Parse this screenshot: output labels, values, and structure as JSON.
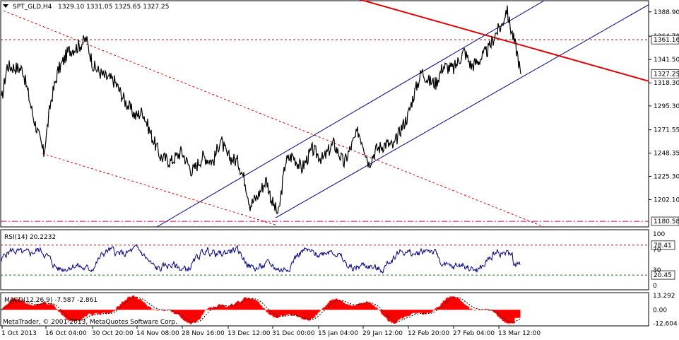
{
  "header": {
    "symbol": "SPT_GLD,H4",
    "ohlc": "1329.10 1331.05 1325.65 1327.25"
  },
  "colors": {
    "background": "#ffffff",
    "price_line": "#000000",
    "channel": "#000080",
    "trend_solid": "#dd0000",
    "trend_dotted": "#dd0000",
    "level_dotted": "#aa0000",
    "support_dashdot": "#cc0077",
    "rsi_line": "#000080",
    "rsi_overbought": "#cc0000",
    "rsi_oversold": "#008000",
    "macd_hist": "#ff0000",
    "macd_signal": "#000000"
  },
  "copyright": "MetaTrader, © 2001-2013, MetaQuotes Software Corp.",
  "chart_data": [
    {
      "type": "line",
      "name": "price",
      "ylim": [
        1175,
        1400
      ],
      "yticks": [
        "1388.90",
        "1364.70",
        "1341.50",
        "1318.30",
        "1295.30",
        "1271.55",
        "1248.35",
        "1225.30",
        "1202.10"
      ],
      "price_tags": [
        {
          "label": "1361.16",
          "value": 1361.16,
          "style": "dark"
        },
        {
          "label": "1327.25",
          "value": 1327.25,
          "style": "dark"
        },
        {
          "label": "1180.58",
          "value": 1180.58,
          "style": "dark"
        }
      ],
      "x_labels": [
        "1 Oct 2013",
        "16 Oct 04:00",
        "30 Oct 20:00",
        "14 Nov 08:00",
        "28 Nov 16:00",
        "13 Dec 12:00",
        "31 Dec 00:00",
        "15 Jan 04:00",
        "29 Jan 12:00",
        "12 Feb 20:00",
        "27 Feb 04:00",
        "13 Mar 12:00"
      ],
      "keypoints": [
        [
          0,
          1300
        ],
        [
          8,
          1335
        ],
        [
          30,
          1332
        ],
        [
          45,
          1285
        ],
        [
          60,
          1248
        ],
        [
          70,
          1300
        ],
        [
          80,
          1330
        ],
        [
          95,
          1350
        ],
        [
          110,
          1355
        ],
        [
          120,
          1362
        ],
        [
          130,
          1335
        ],
        [
          145,
          1325
        ],
        [
          160,
          1320
        ],
        [
          175,
          1300
        ],
        [
          190,
          1285
        ],
        [
          200,
          1290
        ],
        [
          210,
          1270
        ],
        [
          225,
          1245
        ],
        [
          240,
          1240
        ],
        [
          255,
          1250
        ],
        [
          270,
          1230
        ],
        [
          285,
          1245
        ],
        [
          300,
          1240
        ],
        [
          310,
          1262
        ],
        [
          320,
          1245
        ],
        [
          335,
          1240
        ],
        [
          345,
          1220
        ],
        [
          352,
          1197
        ],
        [
          362,
          1205
        ],
        [
          375,
          1222
        ],
        [
          383,
          1200
        ],
        [
          392,
          1187
        ],
        [
          402,
          1240
        ],
        [
          412,
          1246
        ],
        [
          425,
          1233
        ],
        [
          440,
          1252
        ],
        [
          455,
          1242
        ],
        [
          470,
          1258
        ],
        [
          485,
          1238
        ],
        [
          495,
          1255
        ],
        [
          505,
          1270
        ],
        [
          512,
          1258
        ],
        [
          520,
          1238
        ],
        [
          530,
          1252
        ],
        [
          545,
          1258
        ],
        [
          555,
          1255
        ],
        [
          565,
          1272
        ],
        [
          575,
          1285
        ],
        [
          583,
          1305
        ],
        [
          595,
          1330
        ],
        [
          605,
          1320
        ],
        [
          615,
          1318
        ],
        [
          625,
          1335
        ],
        [
          640,
          1332
        ],
        [
          655,
          1350
        ],
        [
          665,
          1335
        ],
        [
          675,
          1340
        ],
        [
          690,
          1352
        ],
        [
          700,
          1368
        ],
        [
          708,
          1375
        ],
        [
          715,
          1392
        ],
        [
          720,
          1375
        ],
        [
          725,
          1362
        ],
        [
          730,
          1348
        ],
        [
          735,
          1327
        ]
      ],
      "lines": [
        {
          "kind": "channel",
          "from": [
            222,
            1175
          ],
          "to": [
            770,
            1400
          ]
        },
        {
          "kind": "channel",
          "from": [
            390,
            1184
          ],
          "to": [
            918,
            1396
          ]
        },
        {
          "kind": "trend_solid",
          "from": [
            500,
            1403
          ],
          "to": [
            918,
            1320
          ]
        },
        {
          "kind": "trend_dotted",
          "from": [
            5,
            1390
          ],
          "to": [
            770,
            1175
          ]
        },
        {
          "kind": "trend_dotted",
          "from": [
            60,
            1248
          ],
          "to": [
            390,
            1177
          ]
        },
        {
          "kind": "level_dotted",
          "value": 1361.16
        },
        {
          "kind": "support_dashdot",
          "value": 1180.58
        }
      ]
    },
    {
      "type": "line",
      "name": "RSI(14)",
      "header": "RSI(14) 20.2232",
      "ylim": [
        0,
        100
      ],
      "yticks": [
        "100",
        "70",
        "30",
        "0"
      ],
      "levels": [
        {
          "label": "78.41",
          "value": 78.41,
          "style": "overbought"
        },
        {
          "label": "20.45",
          "value": 20.45,
          "style": "oversold"
        }
      ],
      "last_value": 20.2232
    },
    {
      "type": "bar",
      "name": "MACD(12,26,9)",
      "header": "MACD(12,26,9) -7.587 -2.861",
      "ylim": [
        -15,
        16
      ],
      "yticks": [
        "13.292",
        "0.00",
        "-12.604"
      ],
      "last_values": [
        -7.587,
        -2.861
      ]
    }
  ]
}
